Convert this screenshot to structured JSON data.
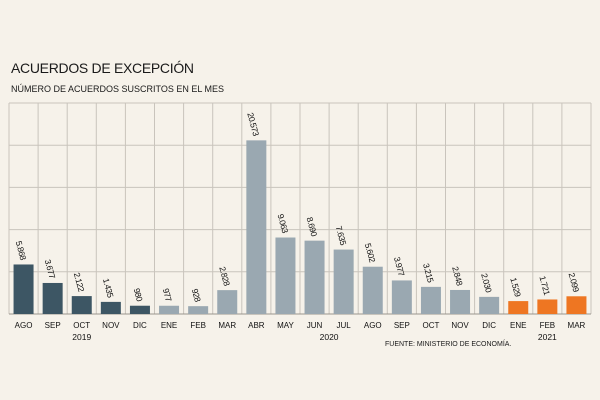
{
  "title": "ACUERDOS DE EXCEPCIÓN",
  "subtitle": "NÚMERO DE ACUERDOS SUSCRITOS EN EL MES",
  "source": "FUENTE: MINISTERIO DE ECONOMÍA.",
  "colors": {
    "bar_2019": "#3d5664",
    "bar_2020": "#9aa8b1",
    "bar_2021": "#ee7622",
    "grid": "#c9c4bc",
    "background": "#f6f2ea"
  },
  "chart_data": {
    "type": "bar",
    "title": "ACUERDOS DE EXCEPCIÓN",
    "subtitle": "NÚMERO DE ACUERDOS SUSCRITOS EN EL MES",
    "categories": [
      "AGO",
      "SEP",
      "OCT",
      "NOV",
      "DIC",
      "ENE",
      "FEB",
      "MAR",
      "ABR",
      "MAY",
      "JUN",
      "JUL",
      "AGO",
      "SEP",
      "OCT",
      "NOV",
      "DIC",
      "ENE",
      "FEB",
      "MAR"
    ],
    "values": [
      5868,
      3677,
      2122,
      1435,
      980,
      977,
      928,
      2828,
      20573,
      9063,
      8690,
      7635,
      5602,
      3977,
      3215,
      2848,
      2030,
      1529,
      1721,
      2099
    ],
    "value_labels": [
      "5.868",
      "3.677",
      "2.122",
      "1.435",
      "980",
      "977",
      "928",
      "2.828",
      "20.573",
      "9.063",
      "8.690",
      "7.635",
      "5.602",
      "3.977",
      "3.215",
      "2.848",
      "2.030",
      "1.529",
      "1.721",
      "2.099"
    ],
    "year_groups": [
      {
        "label": "2019",
        "start": 0,
        "end": 4,
        "color_key": "bar_2019"
      },
      {
        "label": "2020",
        "start": 5,
        "end": 16,
        "color_key": "bar_2020"
      },
      {
        "label": "2021",
        "start": 17,
        "end": 19,
        "color_key": "bar_2021"
      }
    ],
    "ylim": [
      0,
      25000
    ],
    "grid": true,
    "xlabel": "",
    "ylabel": ""
  }
}
